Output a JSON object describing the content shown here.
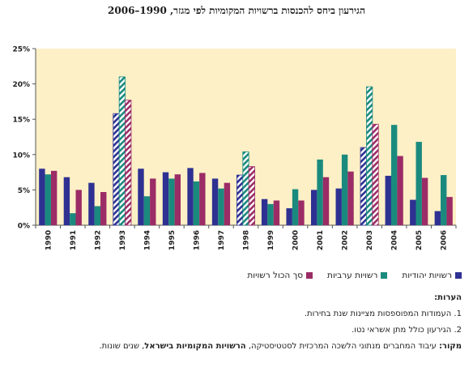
{
  "title": "הגירעון ביחס להכנסות ברשויות המקומיות לפי מגזר, 1990–2006",
  "chart_data": {
    "type": "bar",
    "categories": [
      "1990",
      "1991",
      "1992",
      "1993",
      "1994",
      "1995",
      "1996",
      "1997",
      "1998",
      "1999",
      "2000",
      "2001",
      "2002",
      "2003",
      "2004",
      "2005",
      "2006"
    ],
    "election_years": [
      "1993",
      "1998",
      "2003"
    ],
    "y_ticks": [
      "0%",
      "5%",
      "10%",
      "15%",
      "20%",
      "25%"
    ],
    "ylim": [
      0,
      25
    ],
    "series": [
      {
        "name": "רשויות יהודיות",
        "color": "#2e3192",
        "values": [
          8.0,
          6.8,
          6.0,
          15.8,
          8.0,
          7.5,
          8.1,
          6.6,
          7.1,
          3.7,
          2.4,
          5.0,
          5.2,
          11.0,
          7.0,
          3.6,
          2.0
        ]
      },
      {
        "name": "רשויות ערביות",
        "color": "#1b8a7e",
        "values": [
          7.2,
          1.7,
          2.7,
          21.0,
          4.1,
          6.6,
          6.2,
          5.2,
          10.4,
          3.0,
          5.1,
          9.3,
          10.0,
          19.6,
          14.2,
          11.8,
          7.1
        ]
      },
      {
        "name": "סך הכול רשויות",
        "color": "#9b2c66",
        "values": [
          7.7,
          5.0,
          4.7,
          17.7,
          6.6,
          7.2,
          7.4,
          6.0,
          8.3,
          3.5,
          3.5,
          6.8,
          7.6,
          14.3,
          9.8,
          6.7,
          4.0
        ]
      }
    ],
    "grid": false,
    "plot_background": "#fdf0c6"
  },
  "notes": {
    "heading": "הערות:",
    "items": [
      "1. העמודות המפוספסות מציינות שנת בחירות.",
      "2. הגירעון כולל מתן אשראי נטו."
    ]
  },
  "source": {
    "label": "מקור:",
    "text_before": " עיבוד המחברים מנתוני הלשכה המרכזית לסטטיסטיקה, ",
    "bold_name": "הרשויות המקומיות בישראל",
    "text_after": ", שנים שונות."
  }
}
